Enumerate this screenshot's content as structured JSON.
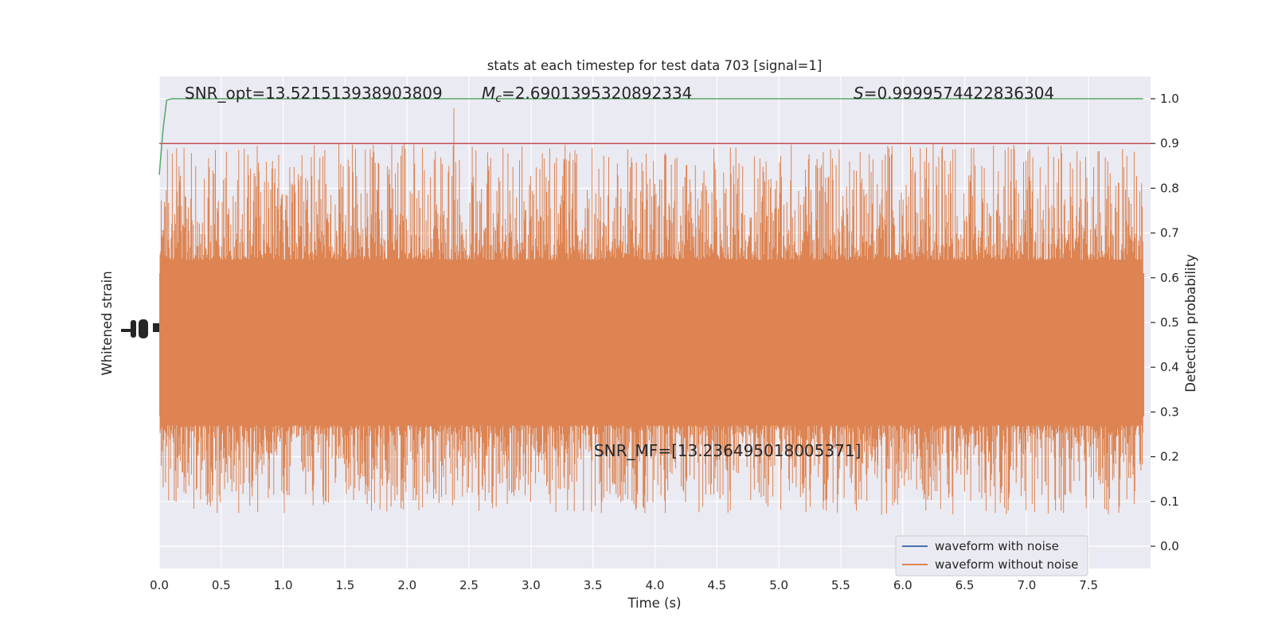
{
  "chart_data": {
    "type": "line",
    "title": "stats at each timestep for test data 703 [signal=1]",
    "xlabel": "Time (s)",
    "ylabel_left": "Whitened strain",
    "ylabel_right": "Detection probability",
    "xlim": [
      0.0,
      8.0
    ],
    "ylim_right": [
      -0.05,
      1.05
    ],
    "x_ticks": [
      "0.0",
      "0.5",
      "1.0",
      "1.5",
      "2.0",
      "2.5",
      "3.0",
      "3.5",
      "4.0",
      "4.5",
      "5.0",
      "5.5",
      "6.0",
      "6.5",
      "7.0",
      "7.5"
    ],
    "y_ticks_right": [
      "0.0",
      "0.1",
      "0.2",
      "0.3",
      "0.4",
      "0.5",
      "0.6",
      "0.7",
      "0.8",
      "0.9",
      "1.0"
    ],
    "annotations": {
      "snr_opt": "SNR_opt=13.521513938903809",
      "mc_symbol": "M",
      "mc_subscript": "c",
      "mc_value": "=2.6901395320892334",
      "s_symbol": "S",
      "s_value": "=0.9999574422836304",
      "snr_mf": "SNR_MF=[13.236495018005371]"
    },
    "threshold": {
      "value": 0.9,
      "color": "#c44e52"
    },
    "detection_probability": {
      "name": "detection probability",
      "color": "#55a868",
      "x": [
        0.0,
        0.03,
        0.06,
        0.1,
        0.15,
        0.3,
        1.0,
        2.0,
        3.0,
        4.0,
        5.0,
        6.0,
        7.0,
        7.94
      ],
      "y": [
        0.83,
        0.93,
        0.997,
        1.0,
        1.0,
        1.0,
        1.0,
        1.0,
        1.0,
        1.0,
        1.0,
        1.0,
        1.0,
        1.0
      ]
    },
    "series": [
      {
        "name": "waveform with noise",
        "color": "#4c72b0"
      },
      {
        "name": "waveform without noise",
        "color": "#dd8452"
      }
    ],
    "colors": {
      "background": "#eaeaf2",
      "grid": "#ffffff",
      "text": "#262626"
    }
  }
}
